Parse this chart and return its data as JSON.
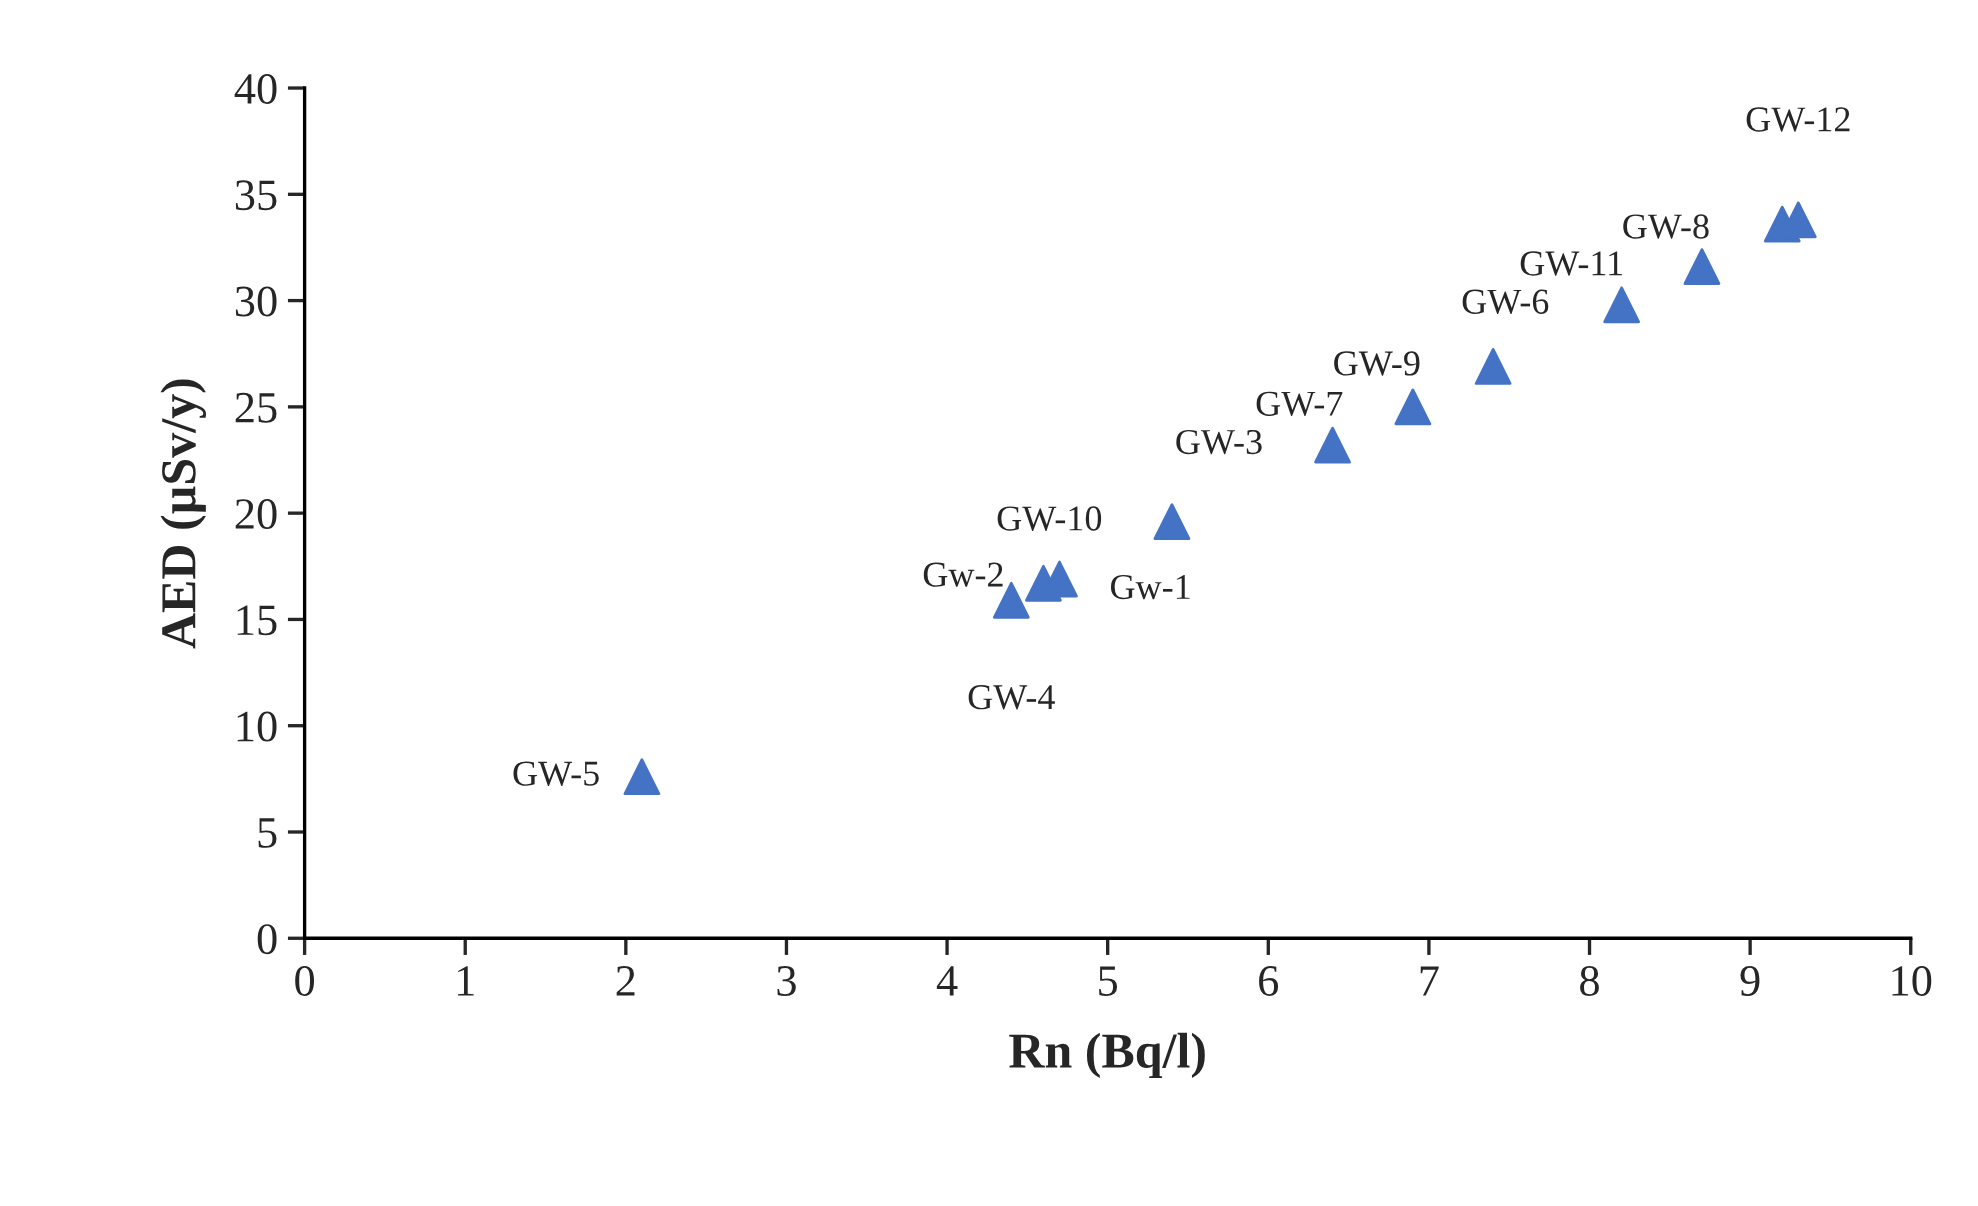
{
  "chart_data": {
    "type": "scatter",
    "xlabel": "Rn (Bq/l)",
    "ylabel": "AED (µSv/y)",
    "series": [
      {
        "color": "#4472c4",
        "x": [
          2.1,
          4.4,
          4.6,
          4.7,
          5.4,
          6.4,
          6.9,
          7.4,
          8.2,
          8.7,
          9.2,
          9.3
        ],
        "values": [
          7.6,
          15.9,
          16.7,
          16.9,
          19.6,
          23.2,
          25.0,
          26.9,
          29.8,
          31.6,
          33.6,
          33.8
        ]
      }
    ],
    "annotations": [
      {
        "text": "GW-5",
        "x": 2.1,
        "y": 7.6
      },
      {
        "text": "GW-4",
        "x": 4.4,
        "y": 15.9
      },
      {
        "text": "Gw-2",
        "x": 4.6,
        "y": 16.7
      },
      {
        "text": "Gw-1",
        "x": 4.7,
        "y": 16.9
      },
      {
        "text": "GW-10",
        "x": 5.4,
        "y": 19.6
      },
      {
        "text": "GW-3",
        "x": 6.4,
        "y": 23.2
      },
      {
        "text": "GW-7",
        "x": 6.9,
        "y": 25.0
      },
      {
        "text": "GW-9",
        "x": 7.4,
        "y": 26.9
      },
      {
        "text": "GW-6",
        "x": 8.2,
        "y": 29.8
      },
      {
        "text": "GW-11",
        "x": 8.7,
        "y": 31.6
      },
      {
        "text": "GW-8",
        "x": 9.2,
        "y": 33.6
      },
      {
        "text": "GW-12",
        "x": 9.3,
        "y": 33.8
      }
    ],
    "xlim": [
      0,
      10
    ],
    "xticks": [
      0,
      1,
      2,
      3,
      4,
      5,
      6,
      7,
      8,
      9,
      10
    ],
    "ylim": [
      0,
      40
    ],
    "yticks": [
      0,
      5,
      10,
      15,
      20,
      25,
      30,
      35,
      40
    ],
    "marker": "triangle",
    "grid": false
  }
}
